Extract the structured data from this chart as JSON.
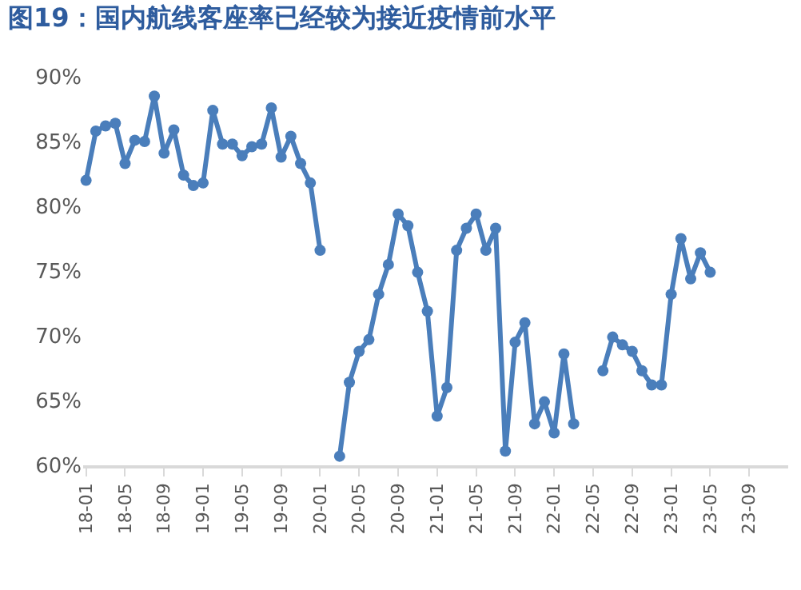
{
  "chart_data": {
    "type": "line",
    "title": "图19：国内航线客座率已经较为接近疫情前水平",
    "categories": [
      "18-01",
      null,
      null,
      null,
      "18-05",
      null,
      null,
      null,
      "18-09",
      null,
      null,
      null,
      "19-01",
      null,
      null,
      null,
      "19-05",
      null,
      null,
      null,
      "19-09",
      null,
      null,
      null,
      "20-01",
      null,
      null,
      null,
      "20-05",
      null,
      null,
      null,
      "20-09",
      null,
      null,
      null,
      "21-01",
      null,
      null,
      null,
      "21-05",
      null,
      null,
      null,
      "21-09",
      null,
      null,
      null,
      "22-01",
      null,
      null,
      null,
      "22-05",
      null,
      null,
      null,
      "22-09",
      null,
      null,
      null,
      "23-01",
      null,
      null,
      null,
      "23-05",
      null,
      null,
      null,
      "23-09"
    ],
    "series": [
      {
        "color": "#4a7ebb",
        "values": [
          82.0,
          85.8,
          86.2,
          86.4,
          83.3,
          85.1,
          85.0,
          88.5,
          84.1,
          85.9,
          82.4,
          81.6,
          81.8,
          87.4,
          84.8,
          84.8,
          83.9,
          84.6,
          84.8,
          87.6,
          83.8,
          85.4,
          83.3,
          81.8,
          76.6,
          null,
          60.7,
          66.4,
          68.8,
          69.7,
          73.2,
          75.5,
          79.4,
          78.5,
          74.9,
          71.9,
          63.8,
          66.0,
          76.6,
          78.3,
          79.4,
          76.6,
          78.3,
          61.1,
          69.5,
          71.0,
          63.2,
          64.9,
          62.5,
          68.6,
          63.2,
          null,
          null,
          67.3,
          69.9,
          69.3,
          68.8,
          67.3,
          66.2,
          66.2,
          73.2,
          77.5,
          74.4,
          76.4,
          74.9,
          null,
          null,
          null,
          null
        ]
      }
    ],
    "ylim": [
      60,
      90
    ],
    "yticks": [
      {
        "value": 60,
        "label": "60%"
      },
      {
        "value": 65,
        "label": "65%"
      },
      {
        "value": 70,
        "label": "70%"
      },
      {
        "value": 75,
        "label": "75%"
      },
      {
        "value": 80,
        "label": "80%"
      },
      {
        "value": 85,
        "label": "85%"
      },
      {
        "value": 90,
        "label": "90%"
      }
    ],
    "grid": false,
    "marker": "circle",
    "line_style": "solid"
  }
}
